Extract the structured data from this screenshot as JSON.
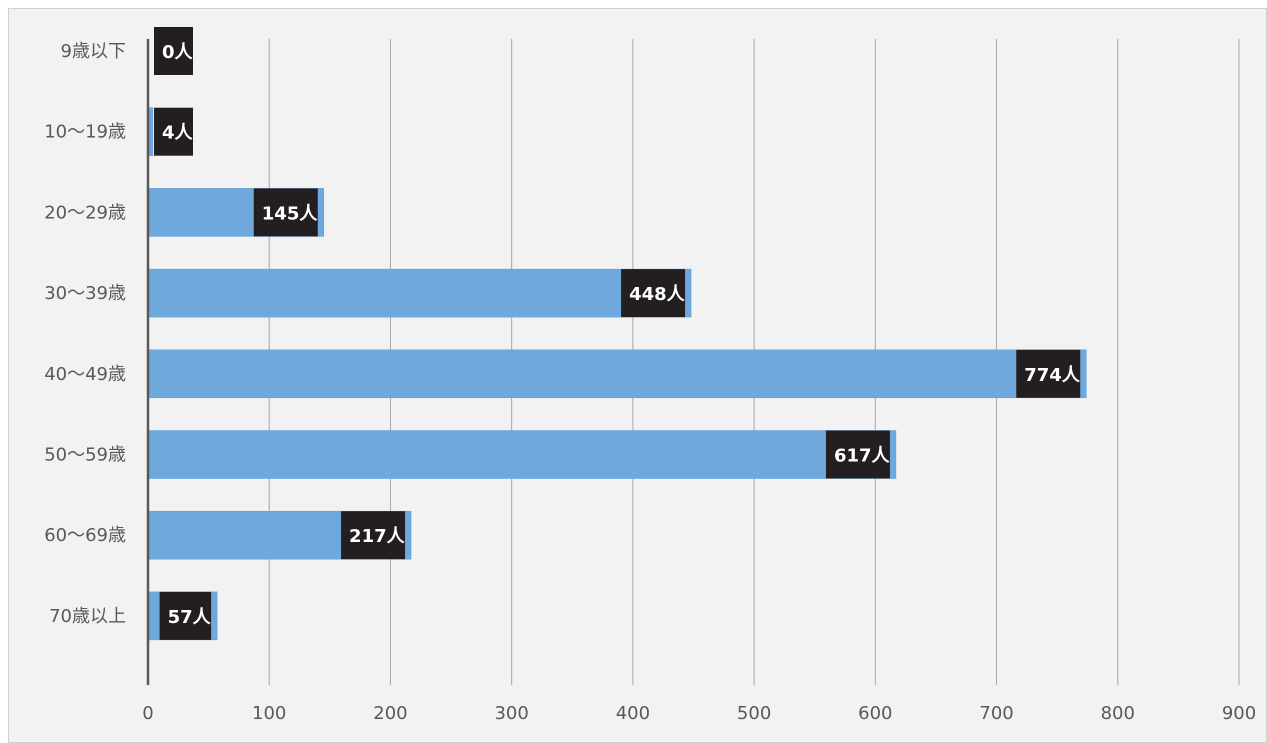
{
  "chart_data": {
    "type": "bar",
    "orientation": "horizontal",
    "categories": [
      "9歳以下",
      "10～19歳",
      "20～29歳",
      "30～39歳",
      "40～49歳",
      "50～59歳",
      "60～69歳",
      "70歳以上"
    ],
    "values": [
      0,
      4,
      145,
      448,
      774,
      617,
      217,
      57
    ],
    "data_labels": [
      "0人",
      "4人",
      "145人",
      "448人",
      "774人",
      "617人",
      "217人",
      "57人"
    ],
    "xlim": [
      0,
      900
    ],
    "xticks": [
      0,
      100,
      200,
      300,
      400,
      500,
      600,
      700,
      800,
      900
    ],
    "title": "",
    "xlabel": "",
    "ylabel": "",
    "grid": "vertical",
    "legend": "none",
    "colors": {
      "bar": "#6fa8dc",
      "bar_edge": "#5b9bd5",
      "label_bg": "#231f20",
      "label_text": "#ffffff",
      "grid": "#a6a6a6",
      "axis": "#595959",
      "tick_text": "#595959",
      "background": "#f2f2f2"
    }
  }
}
